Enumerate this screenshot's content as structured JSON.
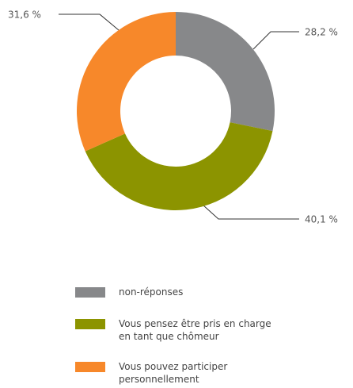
{
  "chart_data": {
    "type": "donut",
    "categories": [
      "non-réponses",
      "Vous pensez être pris en charge en tant que chômeur",
      "Vous pouvez participer personnellement"
    ],
    "values": [
      28.2,
      40.1,
      31.6
    ],
    "value_labels": [
      "28,2 %",
      "40,1 %",
      "31,6 %"
    ],
    "colors": [
      "#87888a",
      "#8c9400",
      "#f7882a"
    ],
    "legend": "bottom"
  }
}
